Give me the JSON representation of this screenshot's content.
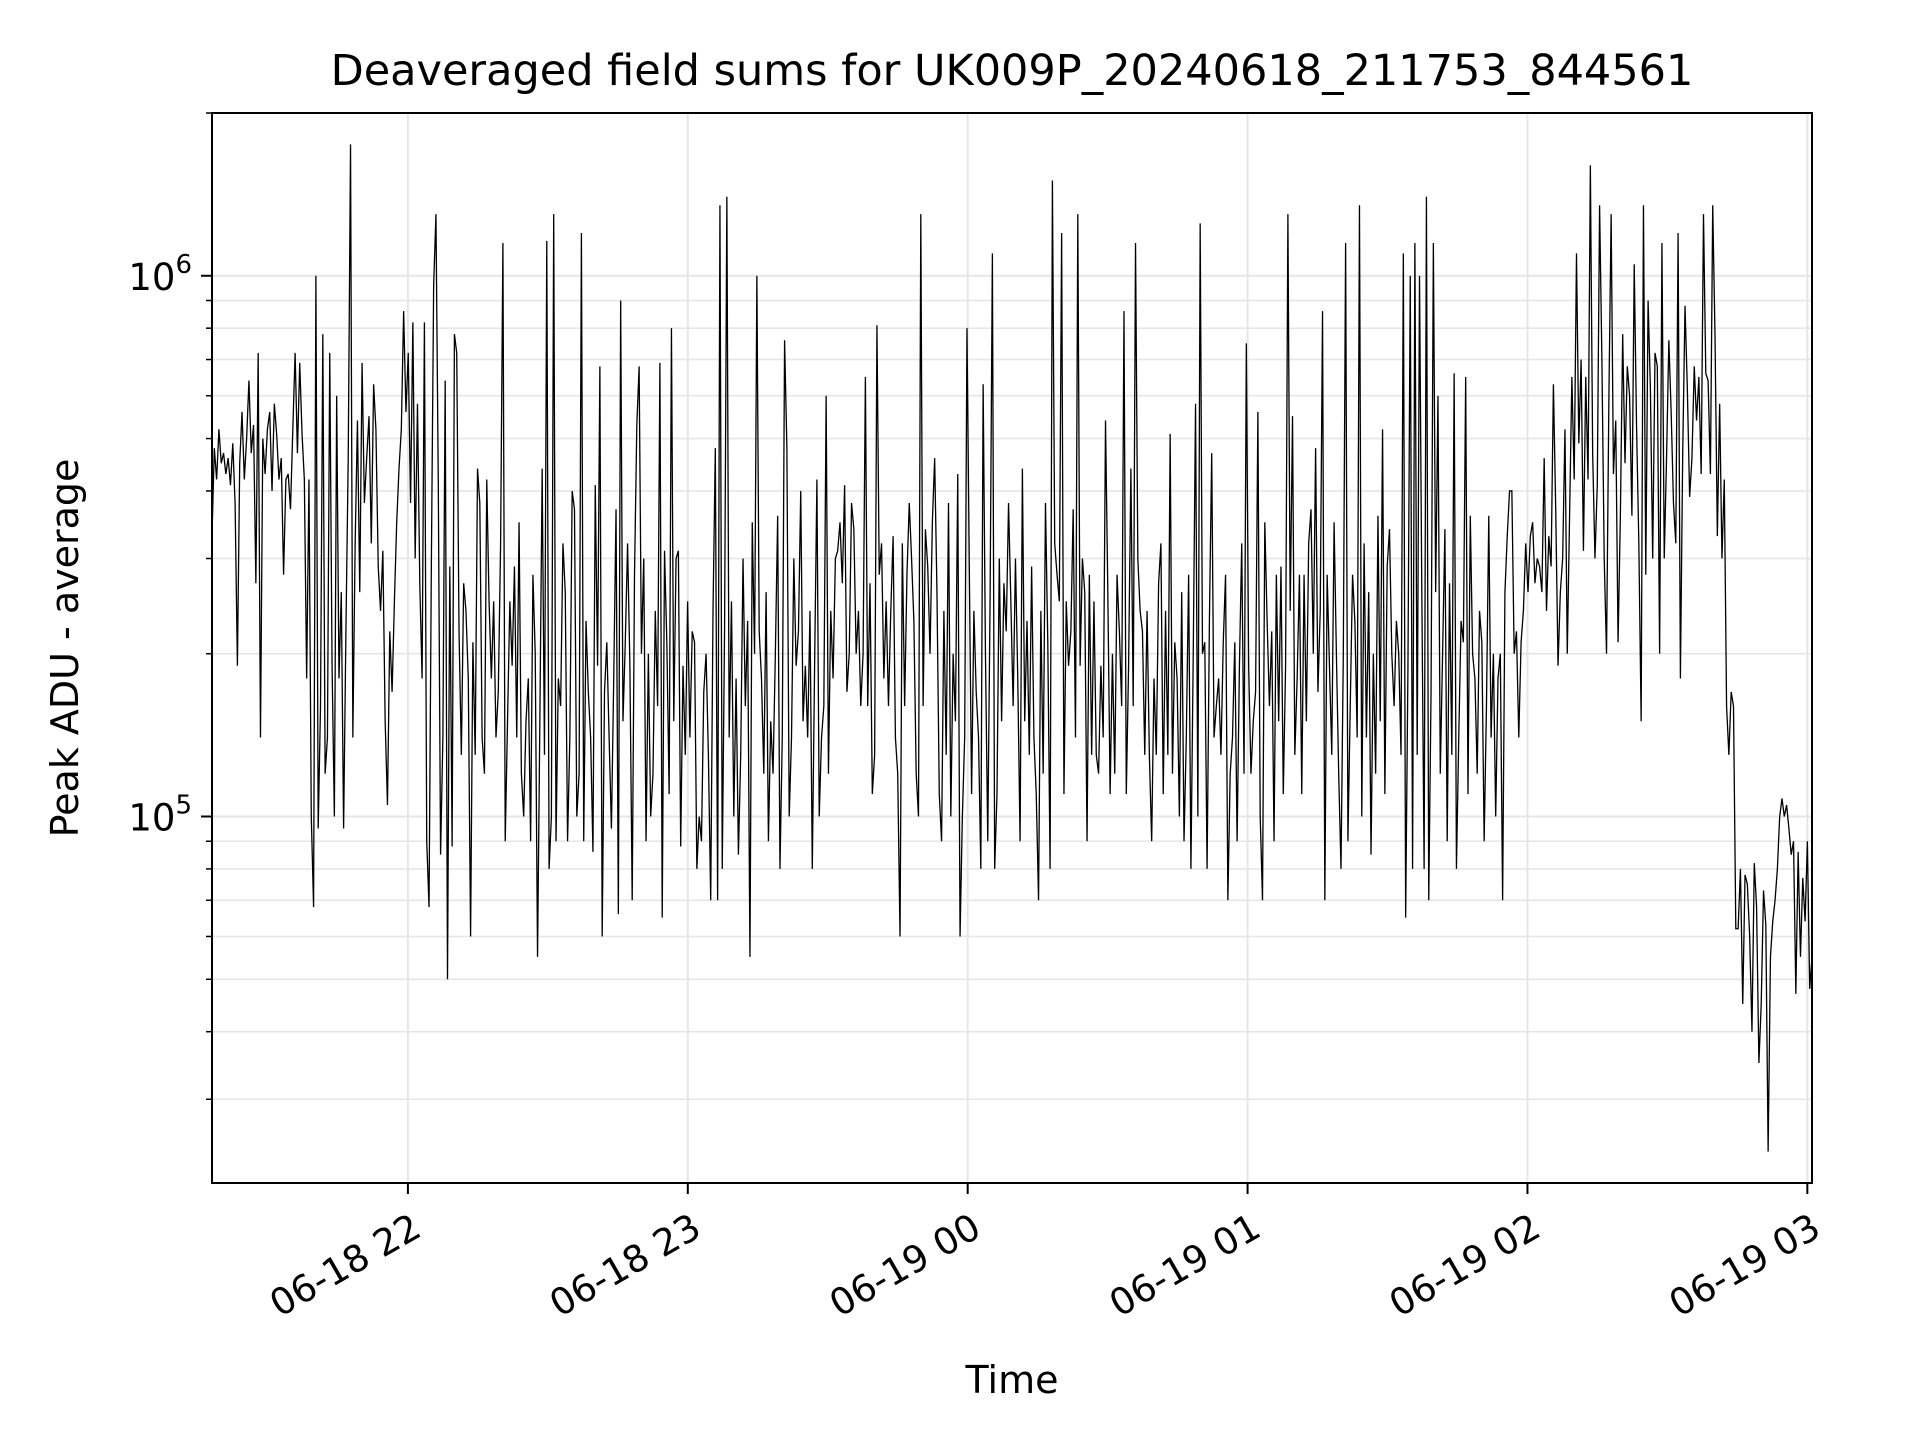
{
  "chart_data": {
    "type": "line",
    "title": "Deaveraged field sums for UK009P_20240618_211753_844561",
    "xlabel": "Time",
    "ylabel": "Peak ADU - average",
    "yscale": "log",
    "grid": true,
    "line_color": "#000000",
    "grid_color": "#e6e6e6",
    "xlim": [
      "2024-06-18 21:18",
      "2024-06-19 03:01"
    ],
    "ylim": [
      21000,
      2000000
    ],
    "x_ticks": [
      {
        "value": "2024-06-18 22:00",
        "label": "06-18 22"
      },
      {
        "value": "2024-06-18 23:00",
        "label": "06-18 23"
      },
      {
        "value": "2024-06-19 00:00",
        "label": "06-19 00"
      },
      {
        "value": "2024-06-19 01:00",
        "label": "06-19 01"
      },
      {
        "value": "2024-06-19 02:00",
        "label": "06-19 02"
      },
      {
        "value": "2024-06-19 03:00",
        "label": "06-19 03"
      }
    ],
    "y_ticks": [
      {
        "value": 100000,
        "base": "10",
        "exp": "5"
      },
      {
        "value": 1000000,
        "base": "10",
        "exp": "6"
      }
    ],
    "series": [
      {
        "x_start": "2024-06-18 21:18",
        "x_end": "2024-06-19 03:01",
        "values": [
          330000,
          480000,
          420000,
          520000,
          450000,
          470000,
          430000,
          460000,
          410000,
          490000,
          380000,
          190000,
          450000,
          560000,
          420000,
          500000,
          640000,
          470000,
          530000,
          270000,
          720000,
          140000,
          500000,
          430000,
          520000,
          560000,
          400000,
          580000,
          510000,
          420000,
          460000,
          280000,
          420000,
          430000,
          370000,
          520000,
          720000,
          470000,
          690000,
          510000,
          420000,
          180000,
          420000,
          100000,
          68000,
          1000000,
          95000,
          160000,
          780000,
          120000,
          140000,
          720000,
          190000,
          100000,
          600000,
          180000,
          260000,
          95000,
          220000,
          460000,
          1750000,
          140000,
          320000,
          540000,
          260000,
          690000,
          380000,
          460000,
          550000,
          320000,
          630000,
          520000,
          290000,
          240000,
          310000,
          150000,
          105000,
          220000,
          170000,
          250000,
          350000,
          440000,
          520000,
          860000,
          560000,
          720000,
          380000,
          820000,
          300000,
          580000,
          270000,
          180000,
          820000,
          90000,
          68000,
          290000,
          960000,
          1300000,
          420000,
          85000,
          140000,
          640000,
          50000,
          290000,
          88000,
          780000,
          720000,
          220000,
          130000,
          270000,
          240000,
          180000,
          60000,
          210000,
          130000,
          440000,
          380000,
          140000,
          120000,
          420000,
          250000,
          180000,
          250000,
          140000,
          170000,
          320000,
          1150000,
          90000,
          150000,
          250000,
          190000,
          290000,
          140000,
          350000,
          120000,
          100000,
          150000,
          180000,
          90000,
          280000,
          200000,
          55000,
          150000,
          440000,
          130000,
          1160000,
          80000,
          100000,
          1300000,
          90000,
          180000,
          160000,
          320000,
          260000,
          90000,
          140000,
          400000,
          370000,
          100000,
          120000,
          1200000,
          90000,
          230000,
          170000,
          140000,
          86000,
          410000,
          190000,
          680000,
          60000,
          170000,
          210000,
          140000,
          95000,
          180000,
          370000,
          66000,
          900000,
          150000,
          210000,
          320000,
          190000,
          70000,
          280000,
          530000,
          680000,
          200000,
          300000,
          90000,
          200000,
          100000,
          120000,
          240000,
          160000,
          690000,
          65000,
          310000,
          210000,
          110000,
          800000,
          150000,
          300000,
          310000,
          88000,
          190000,
          130000,
          250000,
          140000,
          220000,
          210000,
          80000,
          100000,
          90000,
          170000,
          200000,
          130000,
          70000,
          240000,
          480000,
          70000,
          1350000,
          80000,
          220000,
          1400000,
          140000,
          250000,
          100000,
          180000,
          85000,
          130000,
          300000,
          160000,
          230000,
          55000,
          350000,
          200000,
          1000000,
          220000,
          180000,
          120000,
          260000,
          90000,
          150000,
          120000,
          200000,
          360000,
          80000,
          140000,
          760000,
          480000,
          100000,
          140000,
          300000,
          190000,
          220000,
          400000,
          150000,
          190000,
          140000,
          240000,
          80000,
          190000,
          420000,
          100000,
          140000,
          160000,
          600000,
          120000,
          240000,
          180000,
          300000,
          310000,
          350000,
          270000,
          410000,
          170000,
          200000,
          380000,
          340000,
          200000,
          240000,
          160000,
          200000,
          650000,
          160000,
          270000,
          110000,
          130000,
          810000,
          280000,
          320000,
          180000,
          250000,
          160000,
          240000,
          330000,
          140000,
          120000,
          60000,
          320000,
          160000,
          280000,
          380000,
          300000,
          230000,
          120000,
          100000,
          1300000,
          160000,
          340000,
          290000,
          200000,
          350000,
          460000,
          260000,
          110000,
          90000,
          240000,
          130000,
          380000,
          100000,
          200000,
          150000,
          430000,
          60000,
          100000,
          140000,
          800000,
          290000,
          110000,
          240000,
          170000,
          140000,
          80000,
          630000,
          200000,
          90000,
          250000,
          1100000,
          80000,
          110000,
          300000,
          150000,
          270000,
          220000,
          380000,
          250000,
          160000,
          300000,
          180000,
          90000,
          440000,
          150000,
          230000,
          130000,
          290000,
          140000,
          110000,
          70000,
          240000,
          120000,
          380000,
          210000,
          80000,
          1500000,
          320000,
          280000,
          250000,
          1200000,
          110000,
          250000,
          190000,
          220000,
          370000,
          140000,
          1300000,
          190000,
          300000,
          260000,
          90000,
          280000,
          130000,
          250000,
          130000,
          120000,
          190000,
          140000,
          540000,
          260000,
          110000,
          200000,
          120000,
          280000,
          220000,
          160000,
          860000,
          110000,
          190000,
          440000,
          160000,
          1150000,
          300000,
          240000,
          220000,
          130000,
          240000,
          130000,
          90000,
          180000,
          130000,
          270000,
          320000,
          110000,
          240000,
          130000,
          510000,
          120000,
          210000,
          180000,
          100000,
          260000,
          90000,
          140000,
          280000,
          80000,
          200000,
          580000,
          100000,
          1250000,
          200000,
          210000,
          80000,
          230000,
          470000,
          140000,
          160000,
          180000,
          130000,
          210000,
          280000,
          70000,
          120000,
          140000,
          210000,
          90000,
          190000,
          320000,
          120000,
          750000,
          190000,
          120000,
          150000,
          170000,
          560000,
          100000,
          70000,
          350000,
          230000,
          160000,
          220000,
          90000,
          280000,
          150000,
          290000,
          110000,
          190000,
          1300000,
          240000,
          550000,
          130000,
          180000,
          280000,
          110000,
          280000,
          150000,
          320000,
          370000,
          200000,
          480000,
          170000,
          240000,
          860000,
          70000,
          280000,
          190000,
          130000,
          350000,
          200000,
          120000,
          80000,
          200000,
          1150000,
          90000,
          160000,
          280000,
          230000,
          140000,
          1350000,
          100000,
          320000,
          140000,
          260000,
          85000,
          200000,
          120000,
          360000,
          150000,
          520000,
          110000,
          290000,
          340000,
          200000,
          160000,
          230000,
          200000,
          130000,
          1100000,
          65000,
          190000,
          1000000,
          80000,
          1150000,
          130000,
          1000000,
          260000,
          80000,
          1400000,
          70000,
          170000,
          1150000,
          260000,
          600000,
          120000,
          200000,
          340000,
          90000,
          270000,
          130000,
          660000,
          80000,
          140000,
          230000,
          210000,
          650000,
          110000,
          360000,
          200000,
          180000,
          120000,
          240000,
          210000,
          90000,
          160000,
          360000,
          140000,
          200000,
          100000,
          180000,
          200000,
          70000,
          260000,
          330000,
          400000,
          400000,
          200000,
          220000,
          140000,
          210000,
          240000,
          320000,
          260000,
          330000,
          350000,
          270000,
          300000,
          290000,
          260000,
          460000,
          240000,
          330000,
          290000,
          630000,
          370000,
          190000,
          260000,
          300000,
          520000,
          200000,
          360000,
          650000,
          420000,
          1100000,
          490000,
          700000,
          310000,
          650000,
          420000,
          1600000,
          470000,
          300000,
          410000,
          1350000,
          700000,
          300000,
          200000,
          580000,
          1300000,
          430000,
          540000,
          210000,
          360000,
          780000,
          450000,
          680000,
          600000,
          360000,
          1050000,
          530000,
          320000,
          150000,
          1350000,
          280000,
          900000,
          620000,
          300000,
          720000,
          680000,
          200000,
          1150000,
          300000,
          460000,
          760000,
          560000,
          380000,
          320000,
          1200000,
          180000,
          470000,
          880000,
          620000,
          390000,
          460000,
          680000,
          540000,
          650000,
          430000,
          1300000,
          660000,
          640000,
          430000,
          1350000,
          770000,
          330000,
          580000,
          300000,
          420000,
          160000,
          130000,
          170000,
          160000,
          62000,
          62000,
          80000,
          45000,
          78000,
          75000,
          60000,
          40000,
          82000,
          68000,
          35000,
          45000,
          73000,
          63000,
          24000,
          55000,
          64000,
          70000,
          80000,
          100000,
          108000,
          100000,
          105000,
          95000,
          85000,
          90000,
          47000,
          86000,
          55000,
          77000,
          64000,
          90000,
          48000,
          55000
        ]
      }
    ]
  }
}
